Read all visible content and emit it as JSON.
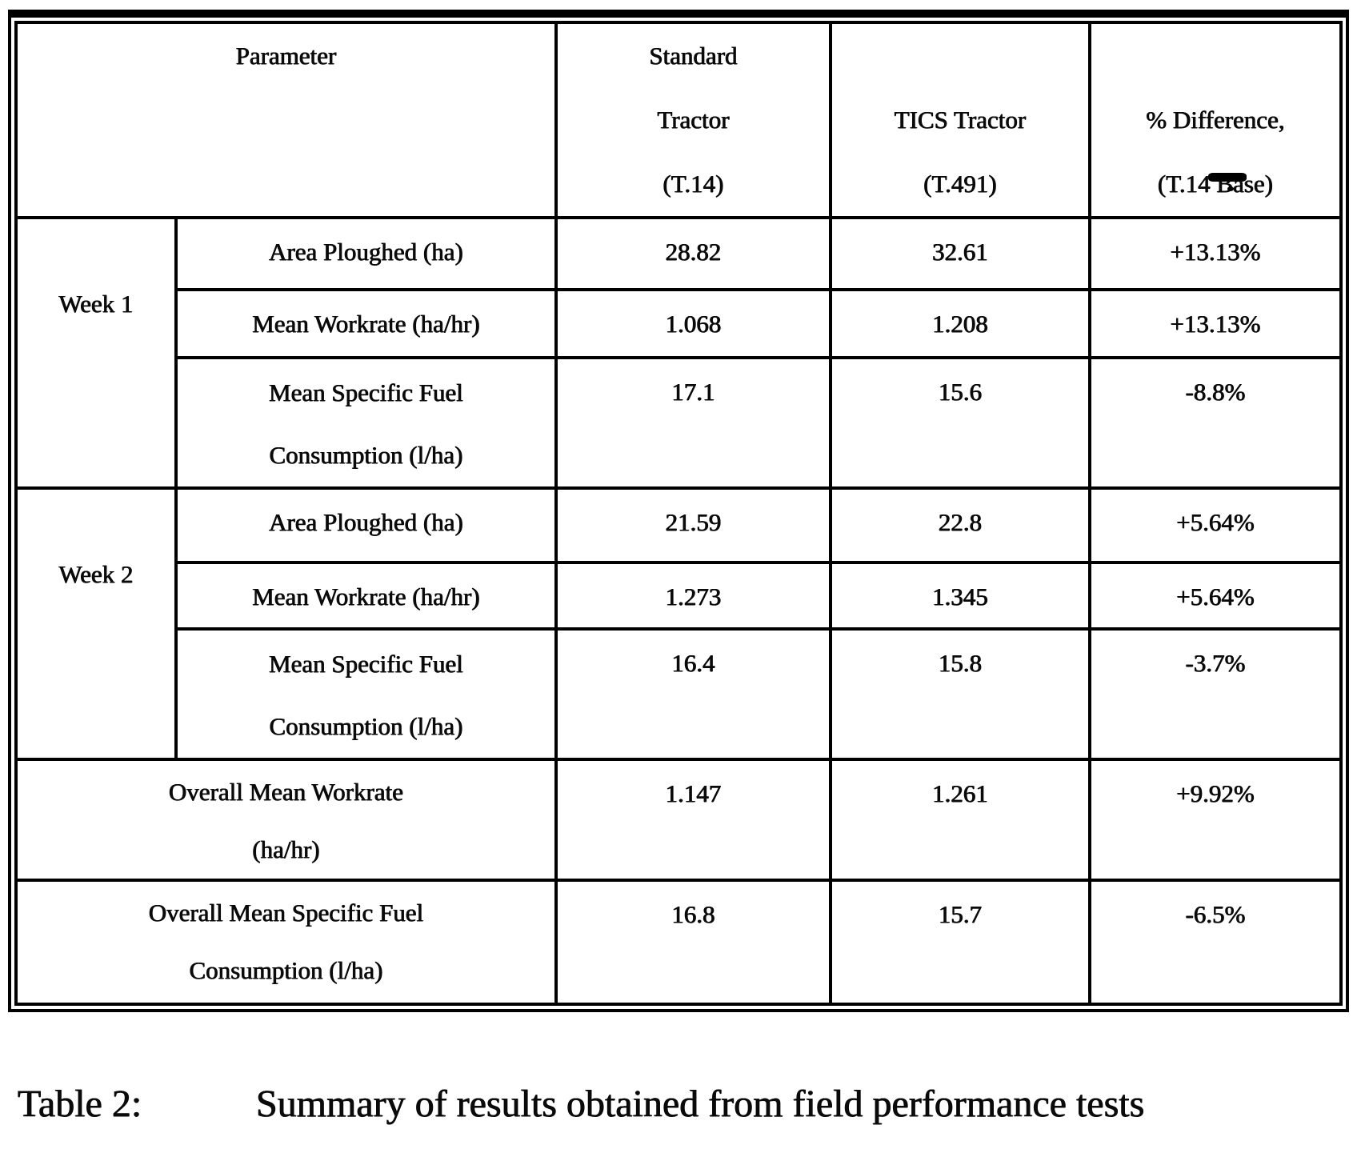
{
  "table": {
    "header": {
      "parameter": "Parameter",
      "standard": [
        "Standard",
        "Tractor",
        "(T.14)"
      ],
      "tics": [
        "TICS Tractor",
        "(T.491)"
      ],
      "difference": [
        "% Difference,",
        "(T.14 Base)"
      ]
    },
    "groups": [
      {
        "label": "Week 1",
        "rows": [
          {
            "parameter": "Area Ploughed (ha)",
            "standard": "28.82",
            "tics": "32.61",
            "difference": "+13.13%"
          },
          {
            "parameter": "Mean Workrate (ha/hr)",
            "standard": "1.068",
            "tics": "1.208",
            "difference": "+13.13%"
          },
          {
            "parameter_lines": [
              "Mean Specific Fuel",
              "Consumption (l/ha)"
            ],
            "standard": "17.1",
            "tics": "15.6",
            "difference": "-8.8%"
          }
        ]
      },
      {
        "label": "Week 2",
        "rows": [
          {
            "parameter": "Area Ploughed (ha)",
            "standard": "21.59",
            "tics": "22.8",
            "difference": "+5.64%"
          },
          {
            "parameter": "Mean Workrate (ha/hr)",
            "standard": "1.273",
            "tics": "1.345",
            "difference": "+5.64%"
          },
          {
            "parameter_lines": [
              "Mean Specific Fuel",
              "Consumption (l/ha)"
            ],
            "standard": "16.4",
            "tics": "15.8",
            "difference": "-3.7%"
          }
        ]
      }
    ],
    "summary": [
      {
        "label_lines": [
          "Overall Mean Workrate",
          "(ha/hr)"
        ],
        "standard": "1.147",
        "tics": "1.261",
        "difference": "+9.92%"
      },
      {
        "label_lines": [
          "Overall Mean Specific Fuel",
          "Consumption (l/ha)"
        ],
        "standard": "16.8",
        "tics": "15.7",
        "difference": "-6.5%"
      }
    ]
  },
  "caption": {
    "label": "Table 2:",
    "text": "Summary of results obtained from field performance tests"
  },
  "colors": {
    "ink": "#0a0a0a",
    "paper": "#ffffff"
  }
}
